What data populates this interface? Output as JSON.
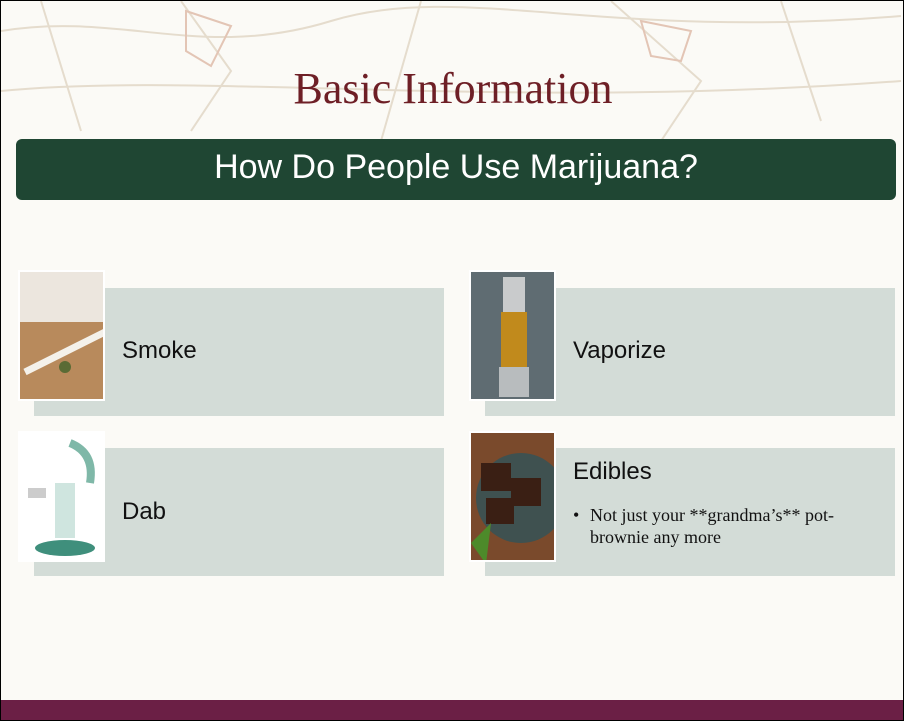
{
  "header": {
    "title": "Basic Information",
    "subtitle": "How Do People Use Marijuana?"
  },
  "items": [
    {
      "label": "Smoke"
    },
    {
      "label": "Vaporize"
    },
    {
      "label": "Dab"
    },
    {
      "label": "Edibles",
      "bullets": [
        "Not just your **grandma’s** pot-brownie any more"
      ]
    }
  ]
}
